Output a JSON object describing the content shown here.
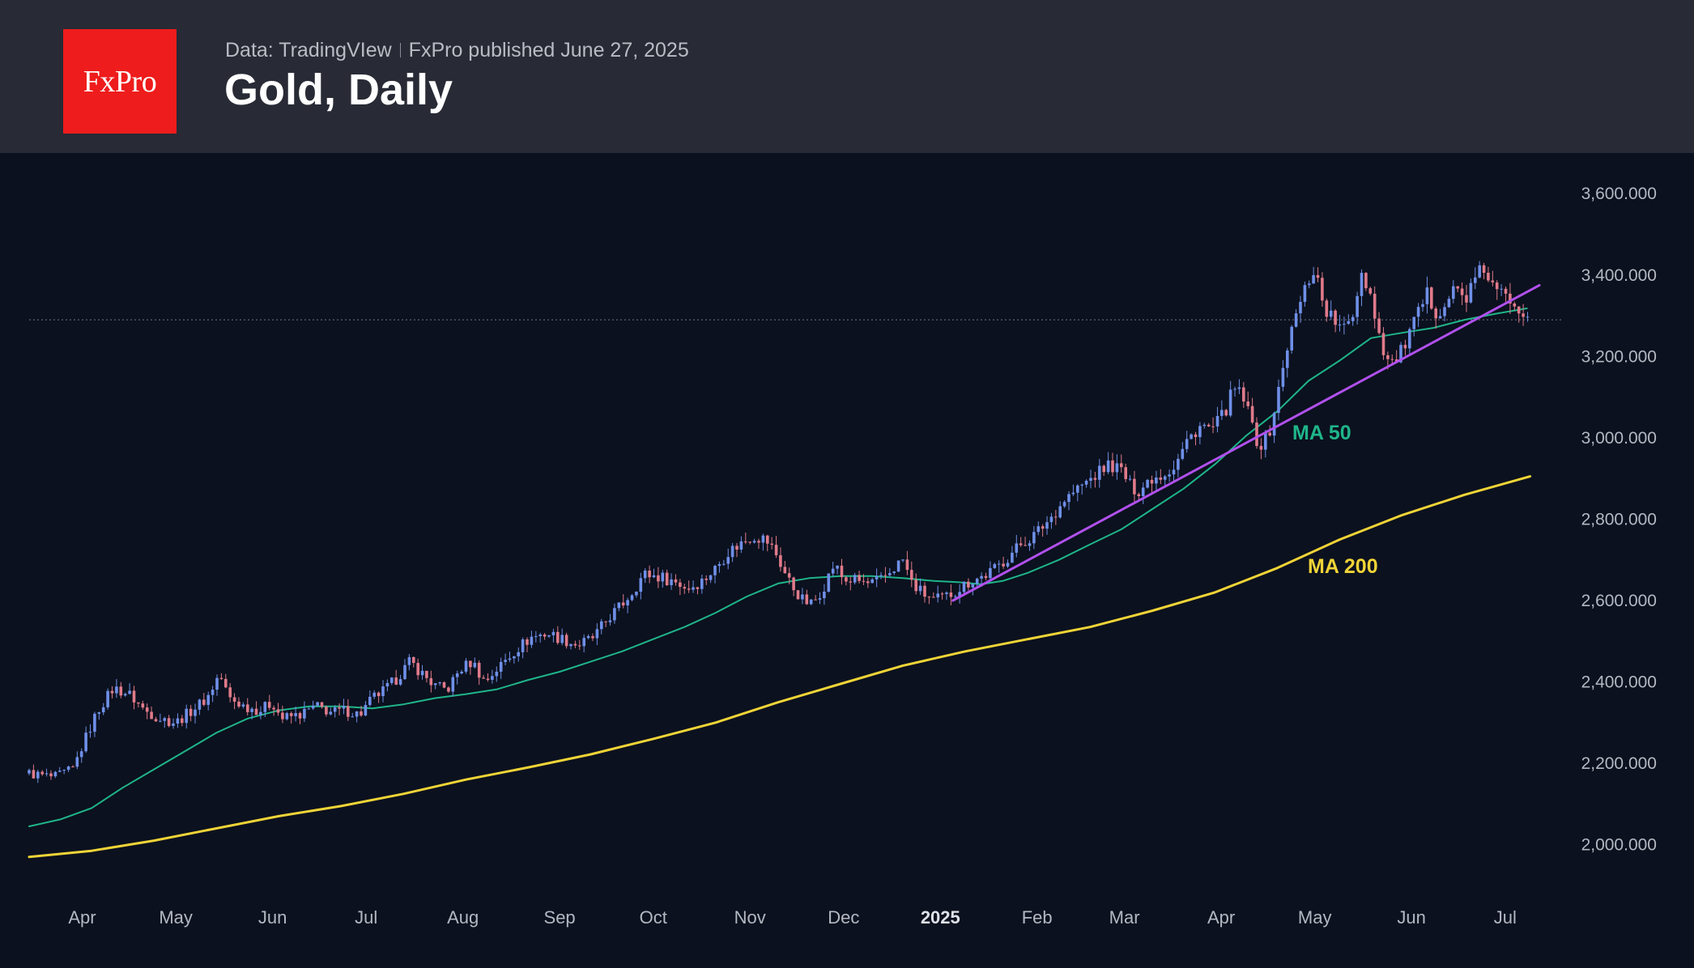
{
  "header": {
    "logo_text": "FxPro",
    "source": "Data: TradingVIew",
    "published": "FxPro published June 27, 2025",
    "title": "Gold, Daily"
  },
  "colors": {
    "background": "#0b111e",
    "header_bg": "#282a35",
    "logo_bg": "#ee1c1c",
    "up_candle": "#6f8fe8",
    "down_candle": "#e07a8a",
    "ma50": "#1fb58a",
    "ma200": "#f0d437",
    "trendline": "#b150ee"
  },
  "chart_data": {
    "type": "candlestick",
    "title": "Gold, Daily",
    "ylim": [
      1860,
      3690
    ],
    "yticks": [
      "3,600.000",
      "3,400.000",
      "3,200.000",
      "3,000.000",
      "2,800.000",
      "2,600.000",
      "2,400.000",
      "2,200.000",
      "2,000.000"
    ],
    "ytick_values": [
      3600,
      3400,
      3200,
      3000,
      2800,
      2600,
      2400,
      2200,
      2000
    ],
    "x_range_days": [
      0,
      485
    ],
    "xticks": [
      {
        "label": "Apr",
        "day": 17
      },
      {
        "label": "May",
        "day": 47
      },
      {
        "label": "Jun",
        "day": 78
      },
      {
        "label": "Jul",
        "day": 108
      },
      {
        "label": "Aug",
        "day": 139
      },
      {
        "label": "Sep",
        "day": 170
      },
      {
        "label": "Oct",
        "day": 200
      },
      {
        "label": "Nov",
        "day": 231
      },
      {
        "label": "Dec",
        "day": 261
      },
      {
        "label": "2025",
        "day": 292,
        "bold": true
      },
      {
        "label": "Feb",
        "day": 323
      },
      {
        "label": "Mar",
        "day": 351
      },
      {
        "label": "Apr",
        "day": 382
      },
      {
        "label": "May",
        "day": 412
      },
      {
        "label": "Jun",
        "day": 443
      },
      {
        "label": "Jul",
        "day": 473
      }
    ],
    "current_price": 3290,
    "price_path": [
      [
        0,
        2175
      ],
      [
        8,
        2165
      ],
      [
        14,
        2185
      ],
      [
        18,
        2260
      ],
      [
        22,
        2330
      ],
      [
        27,
        2385
      ],
      [
        32,
        2370
      ],
      [
        37,
        2330
      ],
      [
        42,
        2310
      ],
      [
        47,
        2300
      ],
      [
        52,
        2330
      ],
      [
        57,
        2360
      ],
      [
        61,
        2420
      ],
      [
        64,
        2360
      ],
      [
        69,
        2340
      ],
      [
        74,
        2330
      ],
      [
        78,
        2350
      ],
      [
        81,
        2310
      ],
      [
        87,
        2320
      ],
      [
        92,
        2340
      ],
      [
        97,
        2325
      ],
      [
        101,
        2330
      ],
      [
        106,
        2320
      ],
      [
        110,
        2360
      ],
      [
        114,
        2380
      ],
      [
        118,
        2410
      ],
      [
        122,
        2450
      ],
      [
        126,
        2420
      ],
      [
        130,
        2390
      ],
      [
        134,
        2380
      ],
      [
        138,
        2430
      ],
      [
        142,
        2450
      ],
      [
        146,
        2400
      ],
      [
        151,
        2440
      ],
      [
        156,
        2480
      ],
      [
        161,
        2510
      ],
      [
        166,
        2520
      ],
      [
        171,
        2505
      ],
      [
        176,
        2490
      ],
      [
        181,
        2510
      ],
      [
        186,
        2560
      ],
      [
        190,
        2590
      ],
      [
        194,
        2630
      ],
      [
        197,
        2665
      ],
      [
        201,
        2660
      ],
      [
        206,
        2650
      ],
      [
        211,
        2630
      ],
      [
        216,
        2650
      ],
      [
        220,
        2680
      ],
      [
        224,
        2720
      ],
      [
        228,
        2740
      ],
      [
        232,
        2760
      ],
      [
        236,
        2750
      ],
      [
        239,
        2720
      ],
      [
        242,
        2670
      ],
      [
        245,
        2630
      ],
      [
        248,
        2600
      ],
      [
        251,
        2590
      ],
      [
        255,
        2640
      ],
      [
        258,
        2690
      ],
      [
        261,
        2650
      ],
      [
        265,
        2650
      ],
      [
        269,
        2640
      ],
      [
        273,
        2650
      ],
      [
        277,
        2680
      ],
      [
        280,
        2700
      ],
      [
        283,
        2640
      ],
      [
        286,
        2620
      ],
      [
        290,
        2600
      ],
      [
        294,
        2610
      ],
      [
        298,
        2630
      ],
      [
        302,
        2650
      ],
      [
        306,
        2660
      ],
      [
        310,
        2680
      ],
      [
        314,
        2710
      ],
      [
        318,
        2740
      ],
      [
        322,
        2760
      ],
      [
        327,
        2800
      ],
      [
        332,
        2850
      ],
      [
        337,
        2880
      ],
      [
        342,
        2910
      ],
      [
        346,
        2935
      ],
      [
        350,
        2920
      ],
      [
        353,
        2880
      ],
      [
        356,
        2870
      ],
      [
        359,
        2900
      ],
      [
        363,
        2910
      ],
      [
        367,
        2930
      ],
      [
        371,
        2990
      ],
      [
        375,
        3030
      ],
      [
        379,
        3020
      ],
      [
        383,
        3060
      ],
      [
        386,
        3120
      ],
      [
        389,
        3100
      ],
      [
        392,
        3030
      ],
      [
        394,
        2980
      ],
      [
        397,
        3000
      ],
      [
        400,
        3100
      ],
      [
        403,
        3220
      ],
      [
        406,
        3300
      ],
      [
        409,
        3370
      ],
      [
        412,
        3420
      ],
      [
        415,
        3320
      ],
      [
        418,
        3290
      ],
      [
        421,
        3260
      ],
      [
        424,
        3300
      ],
      [
        427,
        3410
      ],
      [
        430,
        3350
      ],
      [
        433,
        3240
      ],
      [
        436,
        3180
      ],
      [
        439,
        3200
      ],
      [
        442,
        3250
      ],
      [
        445,
        3300
      ],
      [
        448,
        3350
      ],
      [
        451,
        3310
      ],
      [
        454,
        3330
      ],
      [
        457,
        3370
      ],
      [
        460,
        3340
      ],
      [
        463,
        3380
      ],
      [
        466,
        3420
      ],
      [
        469,
        3370
      ],
      [
        472,
        3350
      ],
      [
        475,
        3340
      ],
      [
        478,
        3320
      ],
      [
        481,
        3300
      ]
    ],
    "series": [
      {
        "name": "MA 50",
        "label": "MA 50",
        "color": "#1fb58a",
        "points": [
          [
            0,
            2045
          ],
          [
            10,
            2062
          ],
          [
            20,
            2090
          ],
          [
            30,
            2140
          ],
          [
            40,
            2185
          ],
          [
            50,
            2230
          ],
          [
            60,
            2275
          ],
          [
            70,
            2310
          ],
          [
            80,
            2330
          ],
          [
            90,
            2340
          ],
          [
            100,
            2340
          ],
          [
            110,
            2335
          ],
          [
            120,
            2345
          ],
          [
            130,
            2360
          ],
          [
            140,
            2370
          ],
          [
            150,
            2382
          ],
          [
            160,
            2405
          ],
          [
            170,
            2425
          ],
          [
            180,
            2450
          ],
          [
            190,
            2475
          ],
          [
            200,
            2505
          ],
          [
            210,
            2535
          ],
          [
            220,
            2570
          ],
          [
            230,
            2610
          ],
          [
            240,
            2642
          ],
          [
            250,
            2655
          ],
          [
            260,
            2660
          ],
          [
            270,
            2660
          ],
          [
            280,
            2655
          ],
          [
            290,
            2648
          ],
          [
            298,
            2645
          ],
          [
            305,
            2640
          ],
          [
            312,
            2648
          ],
          [
            320,
            2668
          ],
          [
            330,
            2700
          ],
          [
            340,
            2738
          ],
          [
            350,
            2775
          ],
          [
            360,
            2825
          ],
          [
            370,
            2875
          ],
          [
            380,
            2935
          ],
          [
            390,
            3005
          ],
          [
            400,
            3065
          ],
          [
            410,
            3140
          ],
          [
            420,
            3190
          ],
          [
            430,
            3245
          ],
          [
            440,
            3258
          ],
          [
            450,
            3270
          ],
          [
            460,
            3290
          ],
          [
            470,
            3305
          ],
          [
            480,
            3318
          ]
        ]
      },
      {
        "name": "MA 200",
        "label": "MA 200",
        "color": "#f0d437",
        "points": [
          [
            0,
            1970
          ],
          [
            20,
            1985
          ],
          [
            40,
            2010
          ],
          [
            60,
            2040
          ],
          [
            80,
            2070
          ],
          [
            100,
            2095
          ],
          [
            120,
            2125
          ],
          [
            140,
            2160
          ],
          [
            160,
            2190
          ],
          [
            180,
            2222
          ],
          [
            200,
            2260
          ],
          [
            220,
            2300
          ],
          [
            240,
            2350
          ],
          [
            260,
            2395
          ],
          [
            280,
            2440
          ],
          [
            300,
            2475
          ],
          [
            320,
            2505
          ],
          [
            340,
            2535
          ],
          [
            360,
            2575
          ],
          [
            380,
            2620
          ],
          [
            400,
            2680
          ],
          [
            420,
            2750
          ],
          [
            440,
            2810
          ],
          [
            460,
            2860
          ],
          [
            481,
            2905
          ]
        ]
      },
      {
        "name": "Trend line",
        "color": "#b150ee",
        "points": [
          [
            296,
            2600
          ],
          [
            484,
            3375
          ]
        ]
      }
    ]
  }
}
